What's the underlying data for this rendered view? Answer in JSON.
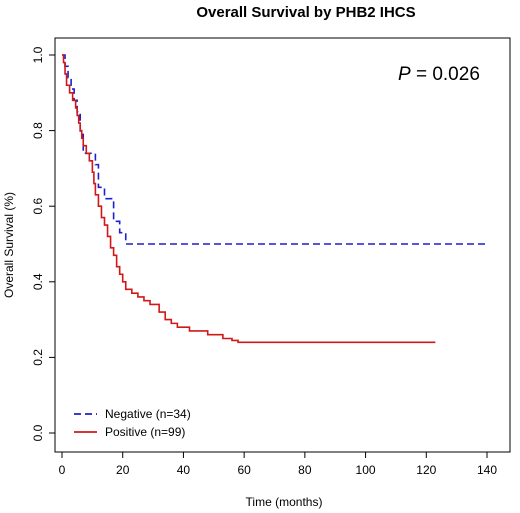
{
  "chart_data": {
    "type": "line",
    "step": true,
    "title": "Overall Survival by PHB2 IHCS",
    "xlabel": "Time (months)",
    "ylabel": "Overall Survival (%)",
    "xlim": [
      0,
      140
    ],
    "ylim": [
      0,
      1.0
    ],
    "x_ticks": [
      0,
      20,
      40,
      60,
      80,
      100,
      120,
      140
    ],
    "y_ticks": [
      "0.0",
      "0.2",
      "0.4",
      "0.6",
      "0.8",
      "1.0"
    ],
    "grid": false,
    "legend_position": "bottom-left",
    "annotation": {
      "italic": "P",
      "rest": " = 0.026"
    },
    "series": [
      {
        "name": "Negative (n=34)",
        "color": "#1f1fd0",
        "dash": "dashed",
        "points": [
          [
            0,
            1.0
          ],
          [
            1,
            0.97
          ],
          [
            2,
            0.94
          ],
          [
            3,
            0.91
          ],
          [
            4,
            0.88
          ],
          [
            5,
            0.85
          ],
          [
            6,
            0.79
          ],
          [
            7,
            0.74
          ],
          [
            11,
            0.71
          ],
          [
            12,
            0.65
          ],
          [
            14,
            0.62
          ],
          [
            17,
            0.56
          ],
          [
            19,
            0.53
          ],
          [
            21,
            0.5
          ],
          [
            140,
            0.5
          ]
        ]
      },
      {
        "name": "Positive (n=99)",
        "color": "#d01818",
        "dash": "solid",
        "points": [
          [
            0,
            1.0
          ],
          [
            0.5,
            0.98
          ],
          [
            1,
            0.95
          ],
          [
            1.5,
            0.92
          ],
          [
            2.5,
            0.9
          ],
          [
            3.5,
            0.88
          ],
          [
            4.5,
            0.86
          ],
          [
            5,
            0.84
          ],
          [
            5.5,
            0.82
          ],
          [
            6,
            0.8
          ],
          [
            6.5,
            0.78
          ],
          [
            7,
            0.76
          ],
          [
            8,
            0.74
          ],
          [
            9,
            0.72
          ],
          [
            10,
            0.69
          ],
          [
            10.5,
            0.66
          ],
          [
            11,
            0.63
          ],
          [
            12,
            0.6
          ],
          [
            13,
            0.57
          ],
          [
            14,
            0.55
          ],
          [
            15,
            0.52
          ],
          [
            16,
            0.49
          ],
          [
            17,
            0.47
          ],
          [
            18,
            0.44
          ],
          [
            19,
            0.42
          ],
          [
            20,
            0.4
          ],
          [
            21,
            0.38
          ],
          [
            23,
            0.37
          ],
          [
            25,
            0.36
          ],
          [
            27,
            0.35
          ],
          [
            29,
            0.34
          ],
          [
            32,
            0.32
          ],
          [
            34,
            0.3
          ],
          [
            36,
            0.29
          ],
          [
            38,
            0.28
          ],
          [
            42,
            0.27
          ],
          [
            45,
            0.27
          ],
          [
            48,
            0.26
          ],
          [
            53,
            0.25
          ],
          [
            56,
            0.245
          ],
          [
            58,
            0.24
          ],
          [
            123,
            0.24
          ]
        ]
      }
    ]
  }
}
